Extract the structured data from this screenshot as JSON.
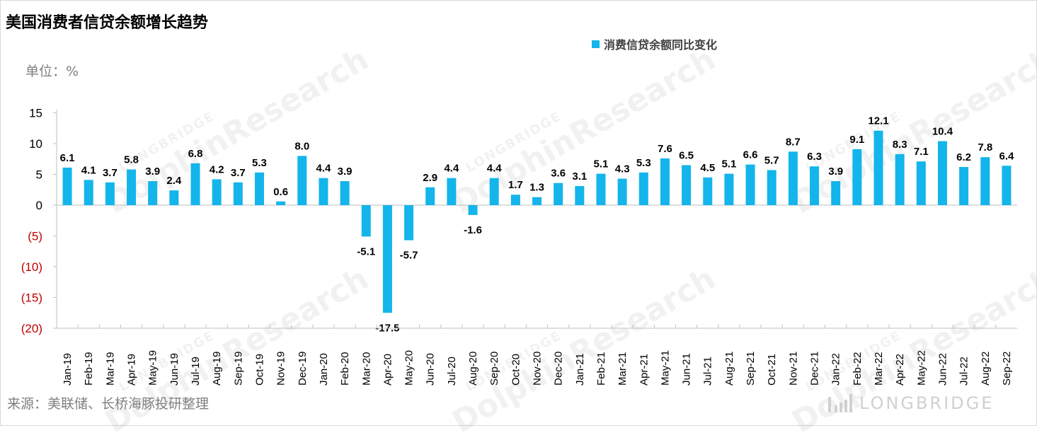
{
  "title": "美国消费者信贷余额增长趋势",
  "unit_label": "单位：%",
  "source": "来源：美联储、长桥海豚投研整理",
  "brand": {
    "text": "LONGBRIDGE"
  },
  "watermarks": [
    {
      "big": "DolphinResearch",
      "small": "LONGBRIDGE"
    },
    {
      "big": "DolphinResearch",
      "small": "LONGBRIDGE"
    },
    {
      "big": "DolphinResearch",
      "small": "LONGBRIDGE"
    },
    {
      "big": "DolphinResearch",
      "small": "LONGBRIDGE"
    },
    {
      "big": "DolphinResearch",
      "small": "LONGBRIDGE"
    },
    {
      "big": "DolphinResearch",
      "small": "LONGBRIDGE"
    }
  ],
  "colors": {
    "bar": "#13b5ea",
    "negative_tick": "#c00000",
    "tick": "#000000",
    "axis": "#bfbfbf"
  },
  "chart_data": {
    "type": "bar",
    "title": "美国消费者信贷余额增长趋势",
    "ylabel": "单位：%",
    "ylim": [
      -20,
      15
    ],
    "yticks": [
      15,
      10,
      5,
      0,
      -5,
      -10,
      -15,
      -20
    ],
    "ytick_labels": [
      "15",
      "10",
      "5",
      "0",
      "(5)",
      "(10)",
      "(15)",
      "(20)"
    ],
    "grid": false,
    "legend_position": "top-center",
    "categories": [
      "Jan-19",
      "Feb-19",
      "Mar-19",
      "Apr-19",
      "May-19",
      "Jun-19",
      "Jul-19",
      "Aug-19",
      "Sep-19",
      "Oct-19",
      "Nov-19",
      "Dec-19",
      "Jan-20",
      "Feb-20",
      "Mar-20",
      "Apr-20",
      "May-20",
      "Jun-20",
      "Jul-20",
      "Aug-20",
      "Sep-20",
      "Oct-20",
      "Nov-20",
      "Dec-20",
      "Jan-21",
      "Feb-21",
      "Mar-21",
      "Apr-21",
      "May-21",
      "Jun-21",
      "Jul-21",
      "Aug-21",
      "Sep-21",
      "Oct-21",
      "Nov-21",
      "Dec-21",
      "Jan-22",
      "Feb-22",
      "Mar-22",
      "Apr-22",
      "May-22",
      "Jun-22",
      "Jul-22",
      "Aug-22",
      "Sep-22"
    ],
    "series": [
      {
        "name": "消费信贷余额同比变化",
        "values": [
          6.1,
          4.1,
          3.7,
          5.8,
          3.9,
          2.4,
          6.8,
          4.2,
          3.7,
          5.3,
          0.6,
          8.0,
          4.4,
          3.9,
          -5.1,
          -17.5,
          -5.7,
          2.9,
          4.4,
          -1.6,
          4.4,
          1.7,
          1.3,
          3.6,
          3.1,
          5.1,
          4.3,
          5.3,
          7.6,
          6.5,
          4.5,
          5.1,
          6.6,
          5.7,
          8.7,
          6.3,
          3.9,
          9.1,
          12.1,
          8.3,
          7.1,
          10.4,
          6.2,
          7.8,
          6.4
        ],
        "labels": [
          "6.1",
          "4.1",
          "3.7",
          "5.8",
          "3.9",
          "2.4",
          "6.8",
          "4.2",
          "3.7",
          "5.3",
          "0.6",
          "8.0",
          "4.4",
          "3.9",
          "-5.1",
          "-17.5",
          "-5.7",
          "2.9",
          "4.4",
          "-1.6",
          "4.4",
          "1.7",
          "1.3",
          "3.6",
          "3.1",
          "5.1",
          "4.3",
          "5.3",
          "7.6",
          "6.5",
          "4.5",
          "5.1",
          "6.6",
          "5.7",
          "8.7",
          "6.3",
          "3.9",
          "9.1",
          "12.1",
          "8.3",
          "7.1",
          "10.4",
          "6.2",
          "7.8",
          "6.4"
        ]
      }
    ]
  }
}
